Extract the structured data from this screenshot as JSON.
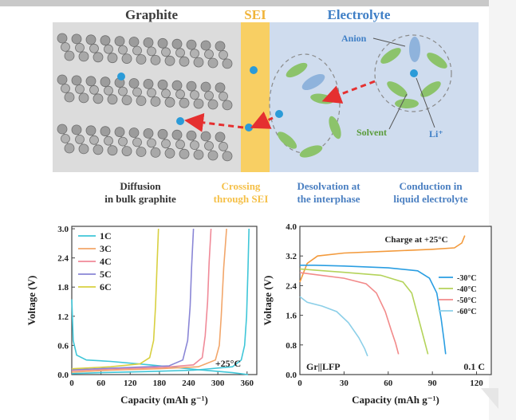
{
  "diagram": {
    "region_titles": {
      "graphite": "Graphite",
      "sei": "SEI",
      "electrolyte": "Electrolyte"
    },
    "labels": {
      "anion": "Anion",
      "solvent": "Solvent",
      "li": "Li⁺"
    },
    "steps": [
      {
        "line1": "Diffusion",
        "line2": "in bulk graphite",
        "color": "#333333"
      },
      {
        "line1": "Crossing",
        "line2": "through SEI",
        "color": "#f5c048"
      },
      {
        "line1": "Desolvation at",
        "line2": "the interphase",
        "color": "#4a7fc1"
      },
      {
        "line1": "Conduction in",
        "line2": "liquid electrolyte",
        "color": "#4a7fc1"
      }
    ],
    "colors": {
      "graphite_bg": "#dcdcdc",
      "sei": "#f8cf63",
      "electrolyte_bg": "#cfdcee",
      "li": "#2b9bd8",
      "solvent": "#8cc36b",
      "anion": "#8fb3dc",
      "arrow": "#e53030"
    }
  },
  "chart_data": [
    {
      "type": "line",
      "title": "",
      "xlabel": "Capacity (mAh g⁻¹)",
      "ylabel": "Voltage (V)",
      "xlim": [
        0,
        380
      ],
      "ylim": [
        0,
        3.05
      ],
      "xticks": [
        "0",
        "60",
        "120",
        "180",
        "240",
        "300",
        "360"
      ],
      "yticks": [
        "0.0",
        "0.6",
        "1.2",
        "1.8",
        "2.4",
        "3.0"
      ],
      "annotation": "+25°C",
      "legend_position": "top-left",
      "series": [
        {
          "name": "1C",
          "color": "#3fc6d8",
          "charge": [
            [
              0,
              0.02
            ],
            [
              60,
              0.04
            ],
            [
              150,
              0.06
            ],
            [
              250,
              0.09
            ],
            [
              330,
              0.16
            ],
            [
              348,
              0.3
            ],
            [
              355,
              0.6
            ],
            [
              359,
              1.2
            ],
            [
              362,
              2.2
            ],
            [
              364,
              3.0
            ]
          ],
          "discharge": [
            [
              0,
              1.55
            ],
            [
              3,
              0.7
            ],
            [
              10,
              0.4
            ],
            [
              30,
              0.3
            ],
            [
              80,
              0.27
            ],
            [
              160,
              0.2
            ],
            [
              260,
              0.1
            ],
            [
              330,
              0.04
            ],
            [
              362,
              0.0
            ]
          ]
        },
        {
          "name": "3C",
          "color": "#f2a66a",
          "charge": [
            [
              0,
              0.05
            ],
            [
              80,
              0.09
            ],
            [
              180,
              0.12
            ],
            [
              260,
              0.16
            ],
            [
              295,
              0.3
            ],
            [
              303,
              0.6
            ],
            [
              307,
              1.2
            ],
            [
              312,
              2.2
            ],
            [
              318,
              3.0
            ]
          ]
        },
        {
          "name": "4C",
          "color": "#f08a98",
          "charge": [
            [
              0,
              0.08
            ],
            [
              90,
              0.12
            ],
            [
              190,
              0.15
            ],
            [
              250,
              0.2
            ],
            [
              268,
              0.35
            ],
            [
              274,
              0.8
            ],
            [
              279,
              1.5
            ],
            [
              282,
              2.3
            ],
            [
              286,
              3.0
            ]
          ]
        },
        {
          "name": "5C",
          "color": "#8a86d6",
          "charge": [
            [
              0,
              0.1
            ],
            [
              100,
              0.14
            ],
            [
              200,
              0.18
            ],
            [
              228,
              0.3
            ],
            [
              238,
              0.7
            ],
            [
              243,
              1.4
            ],
            [
              246,
              2.2
            ],
            [
              250,
              3.0
            ]
          ]
        },
        {
          "name": "6C",
          "color": "#d8d040",
          "charge": [
            [
              0,
              0.12
            ],
            [
              80,
              0.16
            ],
            [
              140,
              0.22
            ],
            [
              160,
              0.35
            ],
            [
              168,
              0.7
            ],
            [
              172,
              1.4
            ],
            [
              175,
              2.2
            ],
            [
              178,
              3.0
            ]
          ]
        }
      ]
    },
    {
      "type": "line",
      "title": "Charge at +25°C",
      "xlabel": "Capacity (mAh g⁻¹)",
      "ylabel": "Voltage (V)",
      "xlim": [
        0,
        130
      ],
      "ylim": [
        0,
        4.0
      ],
      "xticks": [
        "0",
        "30",
        "60",
        "90",
        "120"
      ],
      "yticks": [
        "0.0",
        "0.8",
        "1.6",
        "2.4",
        "3.2",
        "4.0"
      ],
      "annotations": [
        "Gr||LFP",
        "0.1 C"
      ],
      "legend_position": "right",
      "series": [
        {
          "name": "",
          "color": "#f39a3c",
          "points": [
            [
              0,
              2.5
            ],
            [
              5,
              3.0
            ],
            [
              12,
              3.2
            ],
            [
              30,
              3.28
            ],
            [
              60,
              3.33
            ],
            [
              90,
              3.38
            ],
            [
              105,
              3.42
            ],
            [
              110,
              3.55
            ],
            [
              112,
              3.75
            ]
          ]
        },
        {
          "name": "-30°C",
          "color": "#2a9ee2",
          "points": [
            [
              0,
              2.95
            ],
            [
              10,
              2.95
            ],
            [
              30,
              2.93
            ],
            [
              60,
              2.88
            ],
            [
              80,
              2.8
            ],
            [
              88,
              2.6
            ],
            [
              93,
              2.2
            ],
            [
              96,
              1.5
            ],
            [
              98,
              0.9
            ],
            [
              99,
              0.55
            ]
          ]
        },
        {
          "name": "-40°C",
          "color": "#b4d35a",
          "points": [
            [
              0,
              2.85
            ],
            [
              10,
              2.82
            ],
            [
              30,
              2.76
            ],
            [
              55,
              2.68
            ],
            [
              70,
              2.5
            ],
            [
              76,
              2.2
            ],
            [
              80,
              1.6
            ],
            [
              84,
              1.0
            ],
            [
              87,
              0.55
            ]
          ]
        },
        {
          "name": "-50°C",
          "color": "#f28a8a",
          "points": [
            [
              0,
              2.75
            ],
            [
              10,
              2.7
            ],
            [
              30,
              2.6
            ],
            [
              45,
              2.45
            ],
            [
              52,
              2.2
            ],
            [
              58,
              1.7
            ],
            [
              62,
              1.2
            ],
            [
              65,
              0.85
            ],
            [
              67,
              0.55
            ]
          ]
        },
        {
          "name": "-60°C",
          "color": "#8ccfe8",
          "points": [
            [
              0,
              2.1
            ],
            [
              5,
              1.95
            ],
            [
              15,
              1.85
            ],
            [
              25,
              1.7
            ],
            [
              33,
              1.4
            ],
            [
              40,
              1.0
            ],
            [
              44,
              0.7
            ],
            [
              46,
              0.5
            ]
          ]
        }
      ]
    }
  ]
}
